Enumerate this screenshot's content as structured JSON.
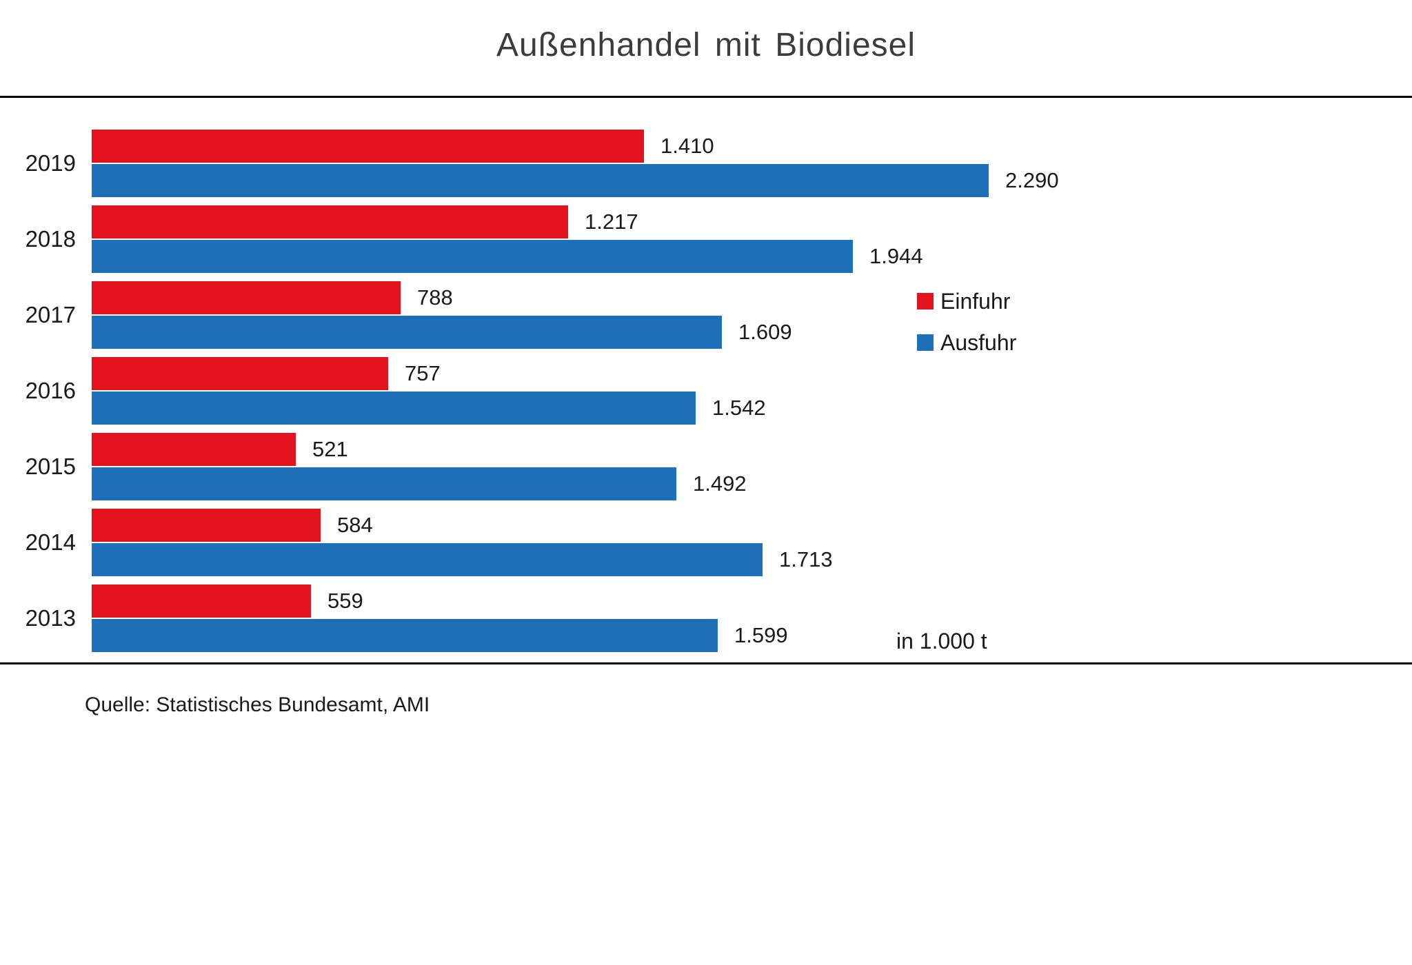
{
  "title": "Außenhandel mit Biodiesel",
  "unit_note": "in 1.000  t",
  "source": "Quelle: Statistisches Bundesamt, AMI",
  "colors": {
    "einfuhr": "#e2131d",
    "ausfuhr": "#1d70b7",
    "rule": "#000000",
    "text": "#1a1a1a"
  },
  "legend": [
    {
      "label": "Einfuhr",
      "color": "#e2131d"
    },
    {
      "label": "Ausfuhr",
      "color": "#1d70b7"
    }
  ],
  "chart_data": {
    "type": "bar",
    "orientation": "horizontal",
    "title": "Außenhandel mit Biodiesel",
    "unit": "in 1.000 t",
    "categories": [
      "2019",
      "2018",
      "2017",
      "2016",
      "2015",
      "2014",
      "2013"
    ],
    "series": [
      {
        "name": "Einfuhr",
        "color": "#e2131d",
        "values": [
          1410,
          1217,
          788,
          757,
          521,
          584,
          559
        ],
        "labels": [
          "1.410",
          "1.217",
          "788",
          "757",
          "521",
          "584",
          "559"
        ]
      },
      {
        "name": "Ausfuhr",
        "color": "#1d70b7",
        "values": [
          2290,
          1944,
          1609,
          1542,
          1492,
          1713,
          1599
        ],
        "labels": [
          "2.290",
          "1.944",
          "1.609",
          "1.542",
          "1.492",
          "1.713",
          "1.599"
        ]
      }
    ],
    "xlim": [
      0,
      2400
    ],
    "grid": false,
    "legend_position": "right",
    "source": "Quelle: Statistisches Bundesamt, AMI"
  }
}
